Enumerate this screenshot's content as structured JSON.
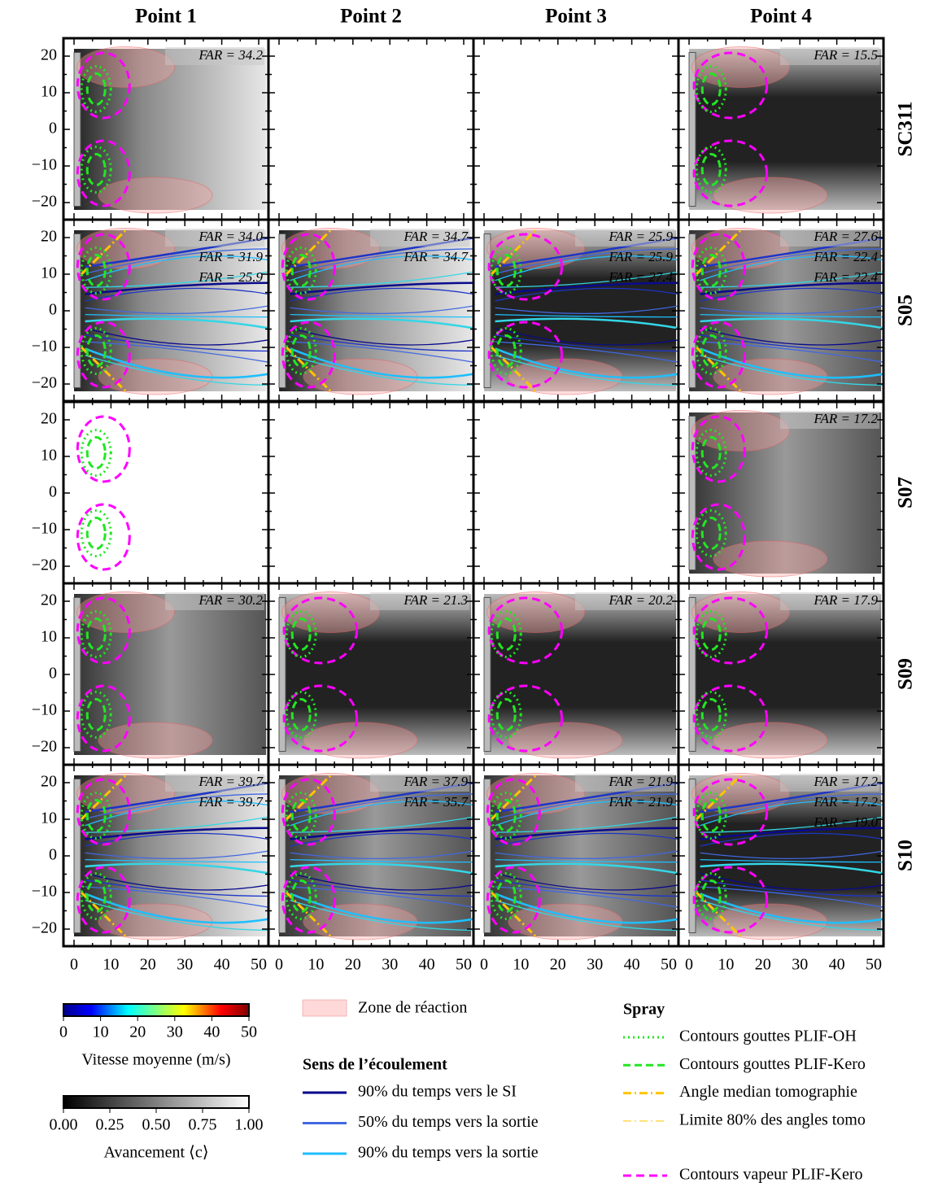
{
  "columns": [
    "Point 1",
    "Point 2",
    "Point 3",
    "Point 4"
  ],
  "rows": [
    "SC311",
    "S05",
    "S07",
    "S09",
    "S10"
  ],
  "yticks": [
    "20",
    "10",
    "0",
    "−10",
    "−20"
  ],
  "xticks": [
    "0",
    "10",
    "20",
    "30",
    "40",
    "50"
  ],
  "panels": [
    [
      {
        "far": [
          "FAR = 34.2"
        ]
      },
      {
        "far": []
      },
      {
        "far": []
      },
      {
        "far": [
          "FAR = 15.5"
        ]
      }
    ],
    [
      {
        "far": [
          "FAR = 34.0",
          "FAR = 31.9",
          "FAR = 25.9"
        ]
      },
      {
        "far": [
          "FAR = 34.7",
          "FAR = 34.7"
        ]
      },
      {
        "far": [
          "FAR = 25.9",
          "FAR = 25.9",
          "FAR = 27.4"
        ]
      },
      {
        "far": [
          "FAR = 27.6",
          "FAR = 22.4",
          "FAR = 22.4"
        ]
      }
    ],
    [
      {
        "far": []
      },
      {
        "far": []
      },
      {
        "far": []
      },
      {
        "far": [
          "FAR = 17.2"
        ]
      }
    ],
    [
      {
        "far": [
          "FAR = 30.2"
        ]
      },
      {
        "far": [
          "FAR = 21.3"
        ]
      },
      {
        "far": [
          "FAR = 20.2"
        ]
      },
      {
        "far": [
          "FAR = 17.9"
        ]
      }
    ],
    [
      {
        "far": [
          "FAR = 39.7",
          "FAR = 39.7"
        ]
      },
      {
        "far": [
          "FAR = 37.9",
          "FAR = 35.7"
        ]
      },
      {
        "far": [
          "FAR = 21.9",
          "FAR = 21.9"
        ]
      },
      {
        "far": [
          "FAR = 17.2",
          "FAR = 17.2",
          "FAR = 19.0"
        ]
      }
    ]
  ],
  "legend": {
    "velocity": {
      "label": "Vitesse moyenne (m/s)",
      "ticks": [
        "0",
        "10",
        "20",
        "30",
        "40",
        "50"
      ]
    },
    "progress": {
      "label": "Avancement ⟨c⟩",
      "ticks": [
        "0.00",
        "0.25",
        "0.50",
        "0.75",
        "1.00"
      ]
    },
    "reaction_zone": "Zone de réaction",
    "flow": {
      "title": "Sens de l’écoulement",
      "entries": [
        "90% du temps vers le SI",
        "50% du temps vers la sortie",
        "90% du temps vers la sortie"
      ]
    },
    "spray": {
      "title": "Spray",
      "entries": [
        "Contours gouttes PLIF-OH",
        "Contours gouttes PLIF-Kero",
        "Angle median tomographie",
        "Limite 80% des angles tomo"
      ],
      "vapor": "Contours vapeur PLIF-Kero"
    }
  }
}
